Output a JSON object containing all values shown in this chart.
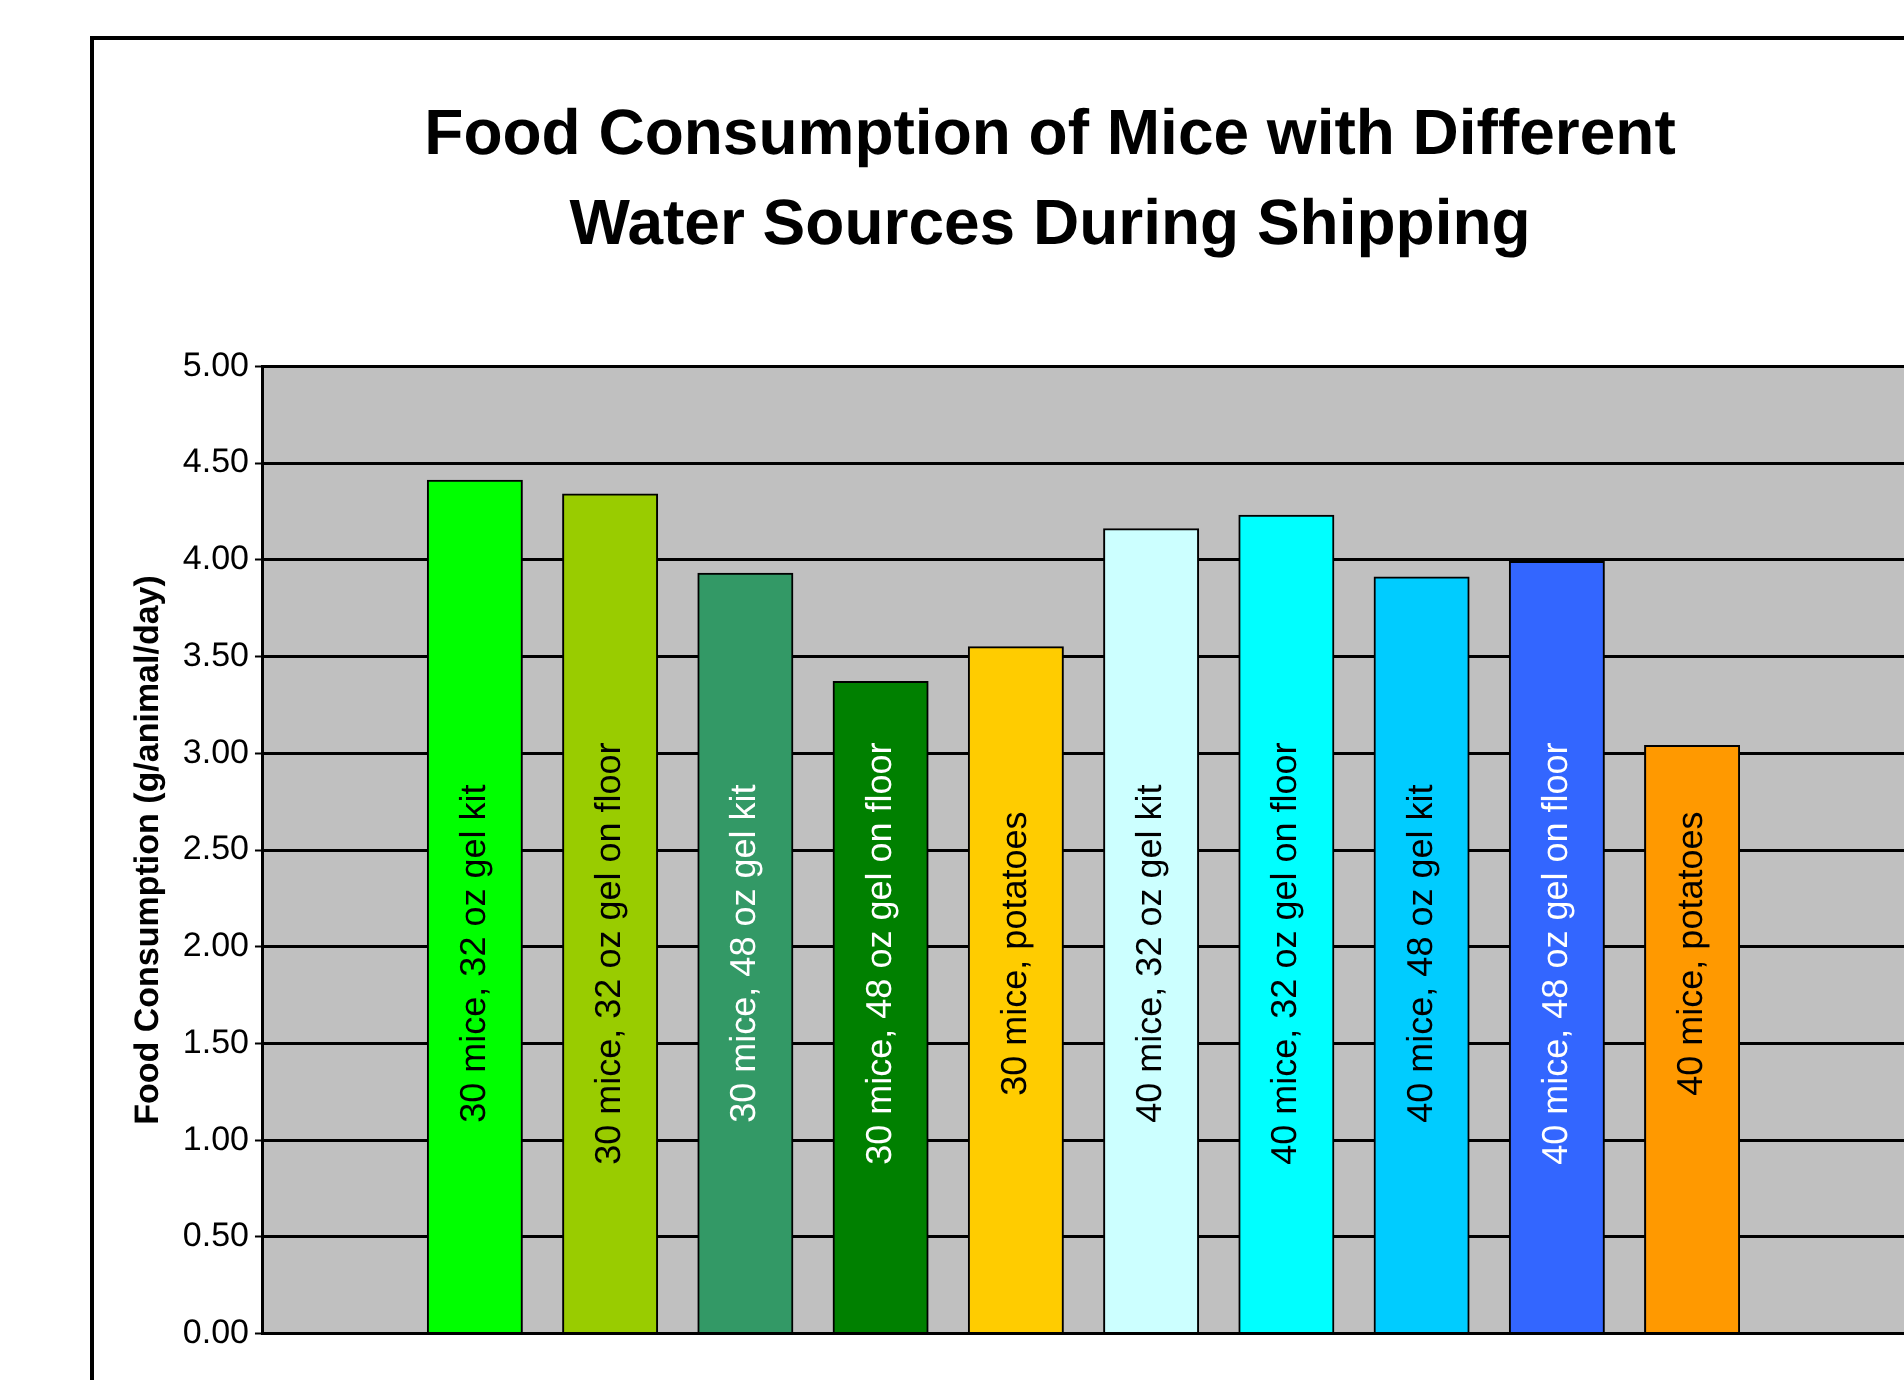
{
  "chart_data": {
    "type": "bar",
    "title": "Food Consumption of Mice with Different Water Sources During Shipping",
    "ylabel": "Food Consumption (g/animal/day)",
    "categories": [
      "30 mice, 32 oz gel kit",
      "30 mice, 32 oz gel on floor",
      "30 mice, 48 oz gel kit",
      "30 mice, 48 oz gel on floor",
      "30 mice, potatoes",
      "40 mice, 32 oz gel kit",
      "40 mice, 32 oz gel on floor",
      "40 mice, 48 oz gel kit",
      "40 mice, 48 oz gel on floor",
      "40 mice, potatoes"
    ],
    "values": [
      4.41,
      4.34,
      3.93,
      3.37,
      3.55,
      4.16,
      4.23,
      3.91,
      3.99,
      3.04
    ],
    "colors": [
      "#00ff00",
      "#99cc00",
      "#339966",
      "#008000",
      "#ffcc00",
      "#ccffff",
      "#00ffff",
      "#00ccff",
      "#3366ff",
      "#ff9900"
    ],
    "ylim": [
      0,
      5
    ],
    "yticks": [
      {
        "value": 0,
        "label": "0.00"
      },
      {
        "value": 0.5,
        "label": "0.50"
      },
      {
        "value": 1,
        "label": "1.00"
      },
      {
        "value": 1.5,
        "label": "1.50"
      },
      {
        "value": 2,
        "label": "2.00"
      },
      {
        "value": 2.5,
        "label": "2.50"
      },
      {
        "value": 3,
        "label": "3.00"
      },
      {
        "value": 3.5,
        "label": "3.50"
      },
      {
        "value": 4,
        "label": "4.00"
      },
      {
        "value": 4.5,
        "label": "4.50"
      },
      {
        "value": 5,
        "label": "5.00"
      }
    ],
    "grid": "y"
  }
}
